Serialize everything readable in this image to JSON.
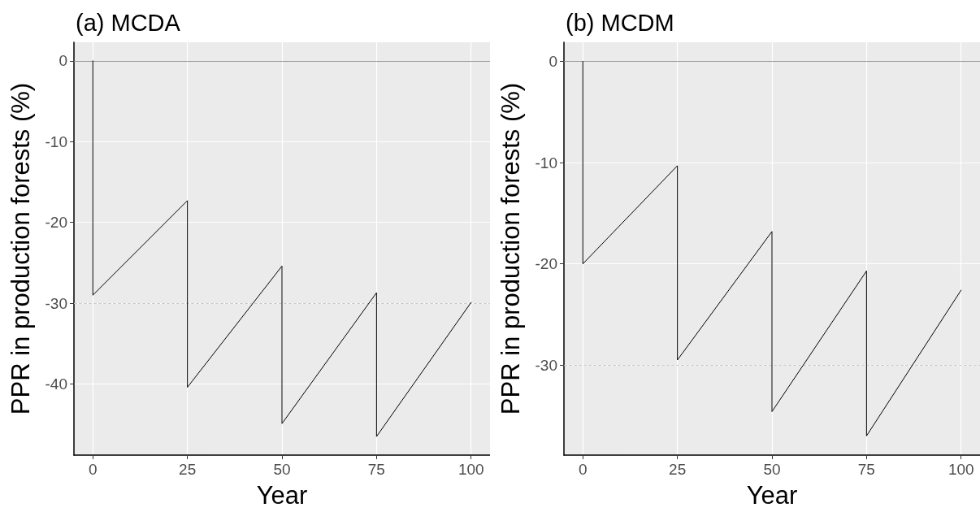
{
  "chart_data": [
    {
      "type": "line",
      "title": "(a) MCDA",
      "xlabel": "Year",
      "ylabel": "PPR in production forests (%)",
      "series": [
        {
          "color": "#000000",
          "x": [
            0,
            0,
            25,
            25,
            50,
            50,
            75,
            75,
            100
          ],
          "values": [
            0,
            -29.0,
            -17.3,
            -40.4,
            -25.4,
            -44.9,
            -28.7,
            -46.5,
            -29.9
          ]
        }
      ],
      "xlim": [
        -5,
        105
      ],
      "xticks": [
        0,
        25,
        50,
        75,
        100
      ],
      "ylim": [
        -48.8,
        2.3
      ],
      "yticks": [
        -40,
        -30,
        -20,
        -10,
        0
      ],
      "grid": true,
      "marker": "none",
      "line_style": "solid",
      "ref_lines": [
        {
          "axis": "y",
          "value": 0,
          "color": "#999999",
          "line_style": "solid"
        },
        {
          "axis": "y",
          "value": -30,
          "color": "#cccccc",
          "line_style": "dashed"
        }
      ]
    },
    {
      "type": "line",
      "title": "(b) MCDM",
      "xlabel": "Year",
      "ylabel": "PPR in production forests (%)",
      "series": [
        {
          "color": "#000000",
          "x": [
            0,
            0,
            25,
            25,
            50,
            50,
            75,
            75,
            100
          ],
          "values": [
            0,
            -20.0,
            -10.3,
            -29.5,
            -16.8,
            -34.6,
            -20.7,
            -37.0,
            -22.6
          ]
        }
      ],
      "xlim": [
        -5,
        105
      ],
      "xticks": [
        0,
        25,
        50,
        75,
        100
      ],
      "ylim": [
        -38.9,
        1.9
      ],
      "yticks": [
        -30,
        -20,
        -10,
        0
      ],
      "grid": true,
      "marker": "none",
      "line_style": "solid",
      "ref_lines": [
        {
          "axis": "y",
          "value": 0,
          "color": "#999999",
          "line_style": "solid"
        },
        {
          "axis": "y",
          "value": -30,
          "color": "#cccccc",
          "line_style": "dashed"
        }
      ]
    }
  ]
}
